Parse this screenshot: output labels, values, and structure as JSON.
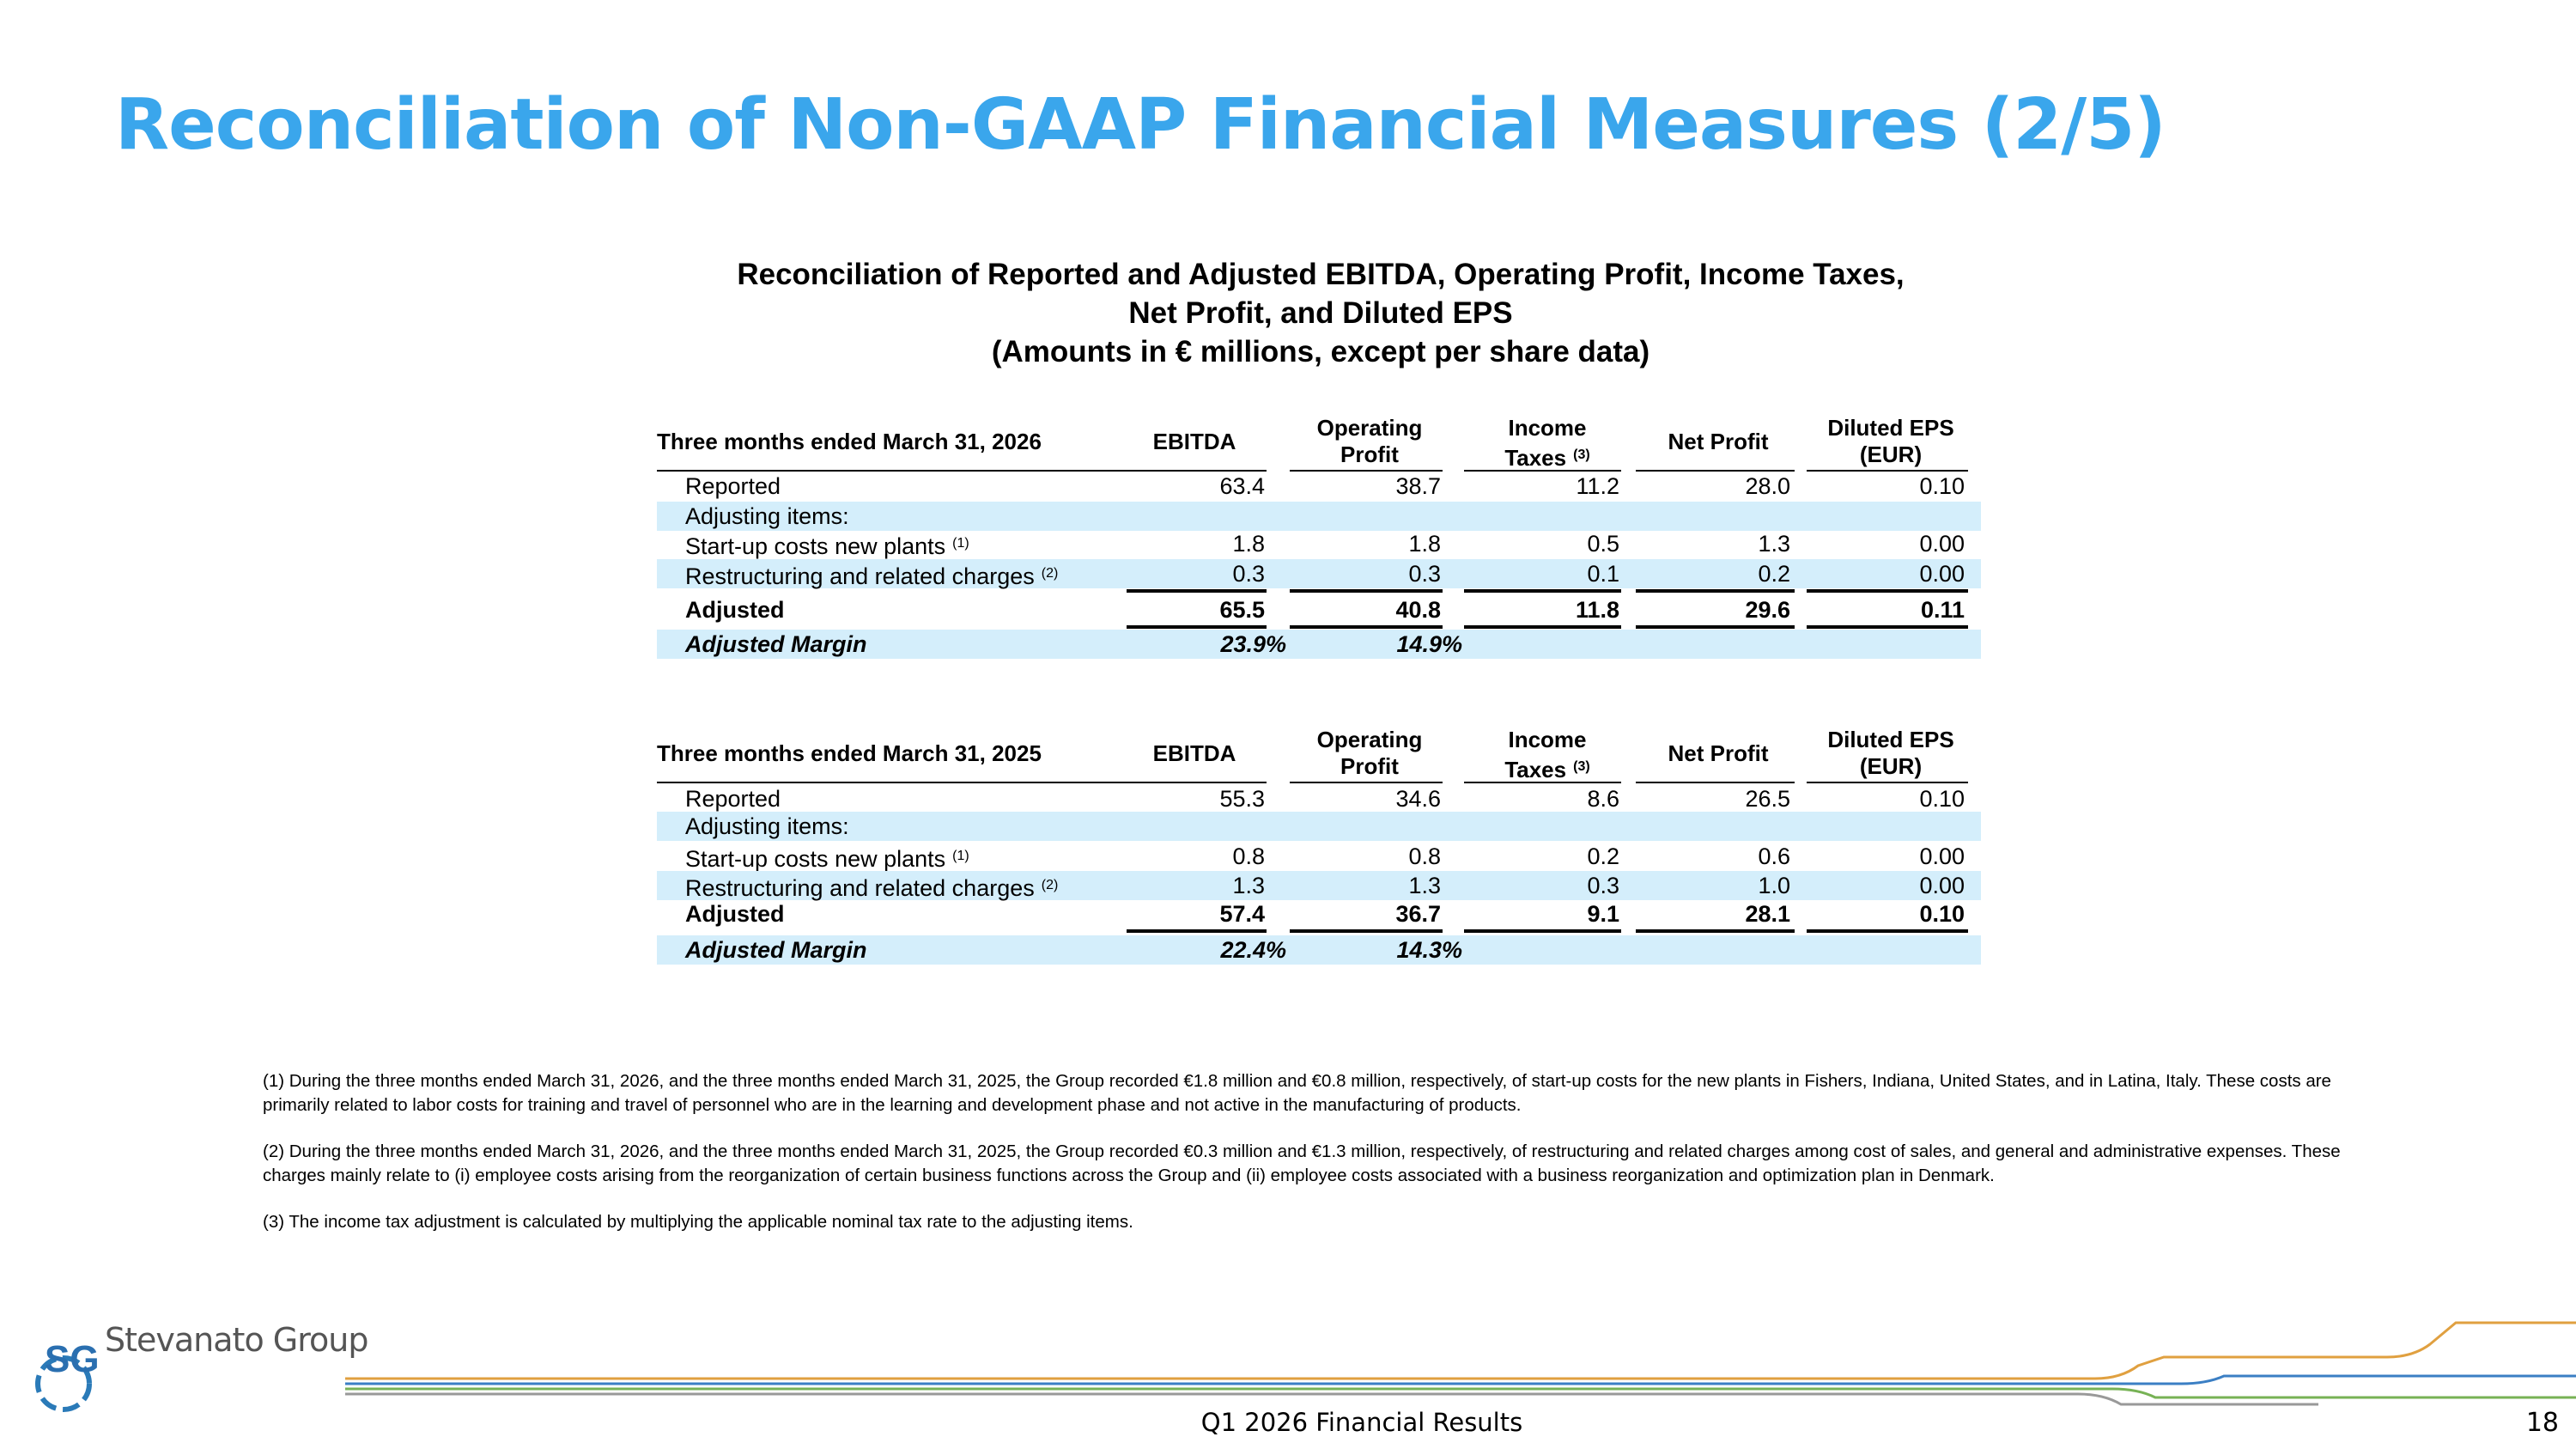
{
  "title": "Reconciliation of Non-GAAP Financial Measures (2/5)",
  "table_title": [
    "Reconciliation of Reported and Adjusted EBITDA, Operating Profit, Income Taxes,",
    "Net Profit, and Diluted EPS",
    "(Amounts in € millions, except per share data)"
  ],
  "tables": [
    {
      "period": "Three months ended March 31, 2026",
      "columns": [
        {
          "label": [
            "EBITDA"
          ]
        },
        {
          "label": [
            "Operating",
            "Profit"
          ]
        },
        {
          "label": [
            "Income",
            "Taxes"
          ],
          "note": "(3)"
        },
        {
          "label": [
            "Net Profit"
          ]
        },
        {
          "label": [
            "Diluted EPS",
            "(EUR)"
          ]
        }
      ],
      "rows": [
        {
          "label": "Reported",
          "cells": [
            "63.4",
            "38.7",
            "11.2",
            "28.0",
            "0.10"
          ]
        },
        {
          "label": "Adjusting items:",
          "cells": []
        },
        {
          "label": "Start-up costs new plants",
          "note": "(1)",
          "cells": [
            "1.8",
            "1.8",
            "0.5",
            "1.3",
            "0.00"
          ]
        },
        {
          "label": "Restructuring and related charges",
          "note": "(2)",
          "cells": [
            "0.3",
            "0.3",
            "0.1",
            "0.2",
            "0.00"
          ]
        },
        {
          "label": "Adjusted",
          "cells": [
            "65.5",
            "40.8",
            "11.8",
            "29.6",
            "0.11"
          ]
        },
        {
          "label": "Adjusted Margin",
          "cells": [
            "23.9%",
            "14.9%"
          ]
        }
      ]
    },
    {
      "period": "Three months ended March 31, 2025",
      "columns": [
        {
          "label": [
            "EBITDA"
          ]
        },
        {
          "label": [
            "Operating",
            "Profit"
          ]
        },
        {
          "label": [
            "Income",
            "Taxes"
          ],
          "note": "(3)"
        },
        {
          "label": [
            "Net Profit"
          ]
        },
        {
          "label": [
            "Diluted EPS",
            "(EUR)"
          ]
        }
      ],
      "rows": [
        {
          "label": "Reported",
          "cells": [
            "55.3",
            "34.6",
            "8.6",
            "26.5",
            "0.10"
          ]
        },
        {
          "label": "Adjusting items:",
          "cells": []
        },
        {
          "label": "Start-up costs new plants",
          "note": "(1)",
          "cells": [
            "0.8",
            "0.8",
            "0.2",
            "0.6",
            "0.00"
          ]
        },
        {
          "label": "Restructuring and related charges",
          "note": "(2)",
          "cells": [
            "1.3",
            "1.3",
            "0.3",
            "1.0",
            "0.00"
          ]
        },
        {
          "label": "Adjusted",
          "cells": [
            "57.4",
            "36.7",
            "9.1",
            "28.1",
            "0.10"
          ]
        },
        {
          "label": "Adjusted Margin",
          "cells": [
            "22.4%",
            "14.3%"
          ]
        }
      ]
    }
  ],
  "footnotes": [
    "(1) During the three months ended March 31, 2026, and the three months ended March 31, 2025, the Group recorded €1.8 million and €0.8 million, respectively, of start-up costs for the new plants in Fishers, Indiana, United States, and in Latina, Italy. These costs are primarily related to labor costs for training and travel of personnel who are in the learning and development phase and not active in the manufacturing of products.",
    "(2) During the three months ended March 31, 2026, and the three months ended March 31, 2025, the Group recorded €0.3 million and €1.3 million, respectively, of restructuring and related charges among cost of sales, and general and administrative expenses. These charges mainly relate to (i) employee costs arising from the reorganization of certain business functions across the Group and (ii) employee costs associated with a business reorganization and optimization plan in Denmark.",
    "(3) The income tax adjustment is calculated by multiplying the applicable nominal tax rate to the adjusting items."
  ],
  "footer": {
    "logo_mark": "SG",
    "logo_text": "Stevanato Group",
    "caption": "Q1 2026 Financial Results",
    "page": "18"
  }
}
